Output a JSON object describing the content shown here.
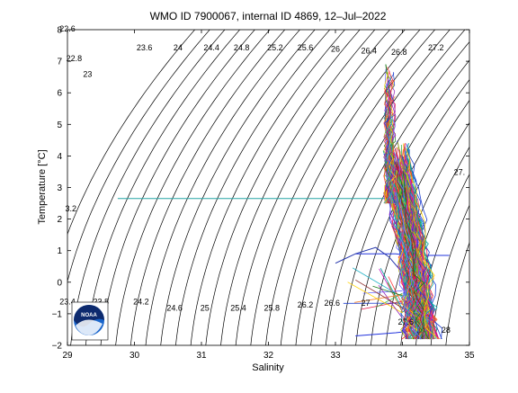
{
  "chart_data": {
    "type": "scatter",
    "title": "WMO ID 7900067, internal ID 4869, 12–Jul–2022",
    "xlabel": "Salinity",
    "ylabel": "Temperature [°C]",
    "xlim": [
      29,
      35
    ],
    "ylim": [
      -2,
      8
    ],
    "xticks": [
      "29",
      "30",
      "31",
      "32",
      "33",
      "34",
      "35"
    ],
    "yticks": [
      "−2",
      "−1",
      "0",
      "1",
      "2",
      "3",
      "4",
      "5",
      "6",
      "7",
      "8"
    ],
    "grid": false,
    "legend": "none",
    "isopycnals": {
      "description_values": [
        22.6,
        22.8,
        23,
        23.2,
        23.4,
        23.6,
        23.8,
        24,
        24.2,
        24.4,
        24.6,
        24.8,
        25,
        25.2,
        25.4,
        25.6,
        25.8,
        26,
        26.2,
        26.4,
        26.6,
        26.8,
        27,
        27.2,
        27.4,
        27.6,
        27.8,
        28
      ],
      "labels": [
        {
          "text": "22.6",
          "s": 29.0,
          "t": 7.95
        },
        {
          "text": "22.8",
          "s": 29.1,
          "t": 7.0
        },
        {
          "text": "23",
          "s": 29.3,
          "t": 6.5
        },
        {
          "text": "23.6",
          "s": 30.15,
          "t": 7.35
        },
        {
          "text": "24",
          "s": 30.65,
          "t": 7.35
        },
        {
          "text": "24.4",
          "s": 31.15,
          "t": 7.35
        },
        {
          "text": "24.8",
          "s": 31.6,
          "t": 7.35
        },
        {
          "text": "25.2",
          "s": 32.1,
          "t": 7.35
        },
        {
          "text": "25.6",
          "s": 32.55,
          "t": 7.35
        },
        {
          "text": "26",
          "s": 33.0,
          "t": 7.3
        },
        {
          "text": "26.4",
          "s": 33.5,
          "t": 7.25
        },
        {
          "text": "26.8",
          "s": 33.95,
          "t": 7.2
        },
        {
          "text": "27.2",
          "s": 34.5,
          "t": 7.35
        },
        {
          "text": "27.",
          "s": 34.85,
          "t": 3.4
        },
        {
          "text": "3.2",
          "s": 29.05,
          "t": 2.25
        },
        {
          "text": "23.4",
          "s": 29.0,
          "t": -0.7
        },
        {
          "text": "23.8",
          "s": 29.5,
          "t": -0.7
        },
        {
          "text": "24.2",
          "s": 30.1,
          "t": -0.7
        },
        {
          "text": "24.6",
          "s": 30.6,
          "t": -0.9
        },
        {
          "text": "25",
          "s": 31.05,
          "t": -0.9
        },
        {
          "text": "25.4",
          "s": 31.55,
          "t": -0.9
        },
        {
          "text": "25.8",
          "s": 32.05,
          "t": -0.9
        },
        {
          "text": "26.2",
          "s": 32.55,
          "t": -0.8
        },
        {
          "text": "26.6",
          "s": 32.95,
          "t": -0.75
        },
        {
          "text": "27",
          "s": 33.45,
          "t": -0.75
        },
        {
          "text": "27.6",
          "s": 34.05,
          "t": -1.35
        },
        {
          "text": "28",
          "s": 34.65,
          "t": -1.6
        }
      ]
    },
    "series": [
      {
        "values_s": [
          29.75,
          33.8
        ],
        "values_t": [
          2.65,
          2.65
        ],
        "color": "#27a6a6"
      },
      {
        "values_s": [
          33.3,
          33.9,
          34.1,
          34.7
        ],
        "values_t": [
          0.9,
          0.9,
          0.85,
          0.85
        ],
        "color": "#2233dd"
      },
      {
        "values_s": [
          33.3,
          33.6,
          33.9,
          34.1
        ],
        "values_t": [
          -1.7,
          -1.65,
          -1.6,
          -1.55
        ],
        "color": "#2233dd"
      },
      {
        "values_s": [
          33.0,
          33.3,
          33.6,
          33.8,
          34.0,
          34.2
        ],
        "values_t": [
          0.6,
          0.9,
          1.1,
          0.8,
          0.3,
          -0.5
        ],
        "color": "#2233aa"
      },
      {
        "values_s": [
          33.75,
          33.8,
          33.82,
          33.78,
          33.85,
          33.9
        ],
        "values_t": [
          6.9,
          6.2,
          5.5,
          4.5,
          3.5,
          2.5
        ],
        "color": "#1d7a1d"
      }
    ],
    "cloud": {
      "s_range": [
        33.6,
        34.7
      ],
      "t_range": [
        -1.85,
        7.0
      ],
      "colors": [
        "#e6194b",
        "#3cb44b",
        "#1f3fd0",
        "#f58231",
        "#911eb4",
        "#2ab5c8",
        "#c81ec8",
        "#b0b010",
        "#1a7a1a",
        "#8b2a2a",
        "#ff3333",
        "#00a0a0",
        "#6a6aff",
        "#ffd200"
      ]
    }
  },
  "logo": {
    "text": "NOAA"
  }
}
